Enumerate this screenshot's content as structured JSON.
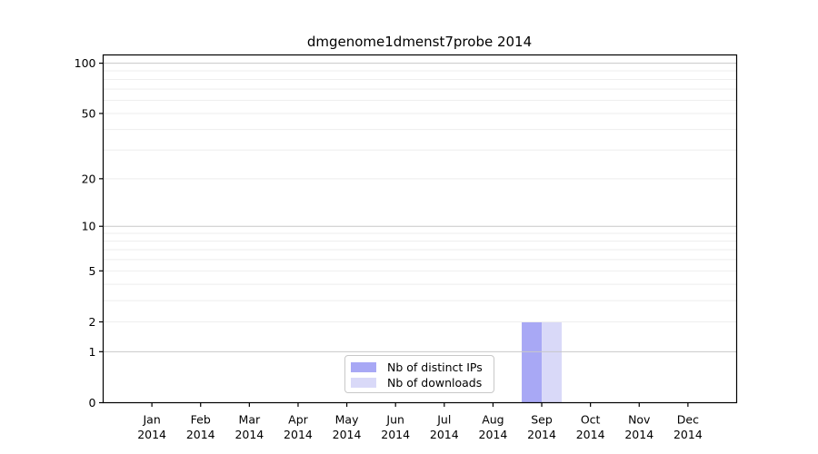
{
  "chart_data": {
    "type": "bar",
    "title": "dmgenome1dmenst7probe 2014",
    "x_tick_second_line": "2014",
    "categories": [
      "Jan",
      "Feb",
      "Mar",
      "Apr",
      "May",
      "Jun",
      "Jul",
      "Aug",
      "Sep",
      "Oct",
      "Nov",
      "Dec"
    ],
    "series": [
      {
        "name": "Nb of distinct IPs",
        "color": "#a8a8f5",
        "values": [
          0,
          0,
          0,
          0,
          0,
          0,
          0,
          0,
          2,
          0,
          0,
          0
        ]
      },
      {
        "name": "Nb of downloads",
        "color": "#d9d9f8",
        "values": [
          0,
          0,
          0,
          0,
          0,
          0,
          0,
          0,
          2,
          0,
          0,
          0
        ]
      }
    ],
    "y_axis": {
      "scale": "log1p",
      "tick_values": [
        0,
        1,
        2,
        5,
        10,
        20,
        50,
        100
      ],
      "minor_gridline_values": [
        2,
        3,
        4,
        5,
        6,
        7,
        8,
        9,
        20,
        30,
        40,
        50,
        60,
        70,
        80,
        90
      ],
      "major_gridline_values": [
        1,
        10,
        100
      ],
      "ylim": [
        0,
        112
      ]
    },
    "legend": {
      "position": "inside-bottom-center"
    },
    "colors": {
      "grid_minor": "#eeeeee",
      "grid_major": "#c8c8c8",
      "axis": "#000000",
      "background": "#ffffff"
    },
    "grid": "on"
  }
}
